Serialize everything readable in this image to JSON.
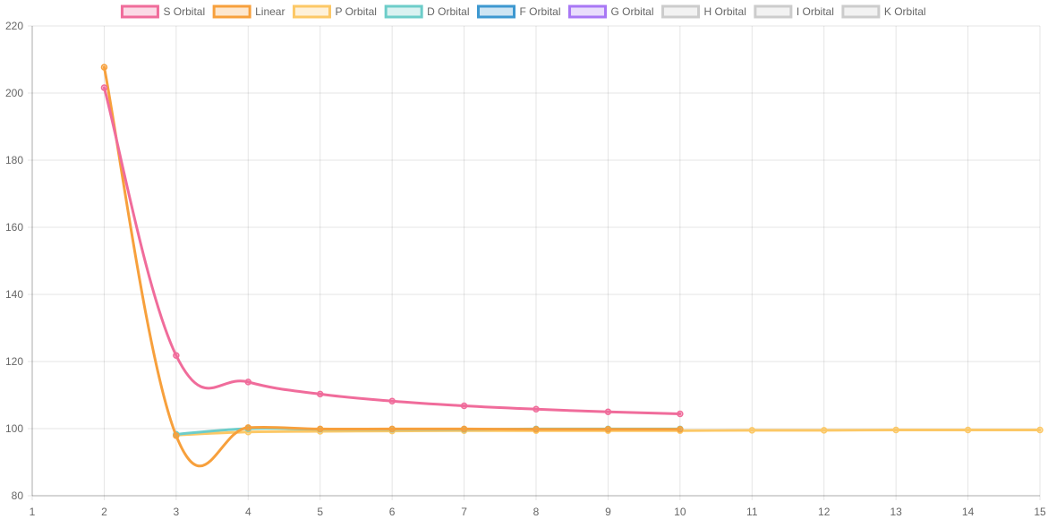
{
  "chart_data": {
    "type": "line",
    "title": "",
    "xlabel": "",
    "ylabel": "",
    "xlim": [
      1,
      15
    ],
    "ylim": [
      80,
      220
    ],
    "x_ticks": [
      1,
      2,
      3,
      4,
      5,
      6,
      7,
      8,
      9,
      10,
      11,
      12,
      13,
      14,
      15
    ],
    "y_ticks": [
      80,
      100,
      120,
      140,
      160,
      180,
      200,
      220
    ],
    "grid": true,
    "legend_position": "top",
    "series": [
      {
        "name": "S Orbital",
        "color": "#f06c9b",
        "hidden": false,
        "x": [
          2,
          3,
          4,
          5,
          6,
          7,
          8,
          9,
          10
        ],
        "values": [
          201.6,
          121.8,
          113.9,
          110.3,
          108.2,
          106.8,
          105.8,
          105.0,
          104.4
        ]
      },
      {
        "name": "Linear",
        "color": "#f7a03c",
        "hidden": false,
        "x": [
          2,
          3,
          4,
          5,
          6,
          7,
          8,
          9,
          10
        ],
        "values": [
          207.7,
          97.9,
          100.3,
          99.9,
          99.9,
          99.9,
          99.8,
          99.8,
          99.8
        ]
      },
      {
        "name": "P Orbital",
        "color": "#fcc866",
        "hidden": false,
        "x": [
          3,
          4,
          5,
          6,
          7,
          8,
          9,
          10,
          11,
          12,
          13,
          14,
          15
        ],
        "values": [
          98.1,
          99.0,
          99.2,
          99.3,
          99.4,
          99.4,
          99.4,
          99.4,
          99.5,
          99.5,
          99.6,
          99.6,
          99.6
        ]
      },
      {
        "name": "D Orbital",
        "color": "#6dcdc9",
        "hidden": false,
        "x": [
          3,
          4,
          5,
          6,
          7,
          8,
          9,
          10
        ],
        "values": [
          98.3,
          100.0,
          99.8,
          99.8,
          99.8,
          99.9,
          99.9,
          99.9
        ]
      },
      {
        "name": "F Orbital",
        "color": "#3d98d0",
        "hidden": false,
        "x": [],
        "values": []
      },
      {
        "name": "G Orbital",
        "color": "#a877f5",
        "hidden": false,
        "x": [],
        "values": []
      },
      {
        "name": "H Orbital",
        "color": "#cccccc",
        "hidden": false,
        "x": [],
        "values": []
      },
      {
        "name": "I Orbital",
        "color": "#cccccc",
        "hidden": false,
        "x": [],
        "values": []
      },
      {
        "name": "K Orbital",
        "color": "#cccccc",
        "hidden": false,
        "x": [],
        "values": []
      }
    ]
  }
}
